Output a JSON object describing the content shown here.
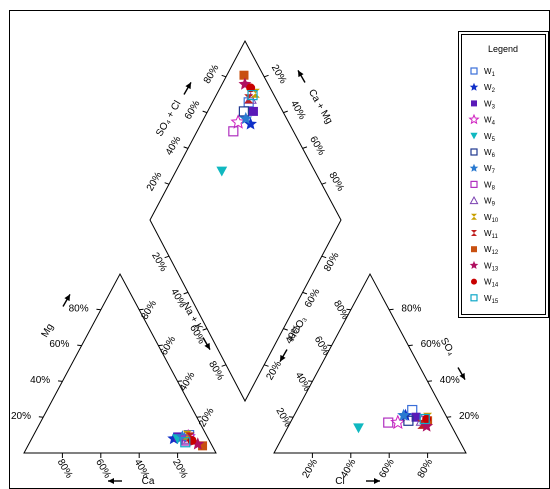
{
  "chart_data": {
    "type": "scatter",
    "legend": {
      "title": "Legend",
      "placement": "right",
      "series": [
        {
          "name": "W1",
          "label": "W",
          "sub": "1",
          "marker": "square-open",
          "color": "#3a6fd8"
        },
        {
          "name": "W2",
          "label": "W",
          "sub": "2",
          "marker": "star-filled",
          "color": "#1030c8"
        },
        {
          "name": "W3",
          "label": "W",
          "sub": "3",
          "marker": "square-filled",
          "color": "#5a1ab8"
        },
        {
          "name": "W4",
          "label": "W",
          "sub": "4",
          "marker": "star-open",
          "color": "#d020c0"
        },
        {
          "name": "W5",
          "label": "W",
          "sub": "5",
          "marker": "triangle-down-filled",
          "color": "#10b8c0"
        },
        {
          "name": "W6",
          "label": "W",
          "sub": "6",
          "marker": "square-open",
          "color": "#203890"
        },
        {
          "name": "W7",
          "label": "W",
          "sub": "7",
          "marker": "star-filled",
          "color": "#2a7ad0"
        },
        {
          "name": "W8",
          "label": "W",
          "sub": "8",
          "marker": "square-open",
          "color": "#b030c0"
        },
        {
          "name": "W9",
          "label": "W",
          "sub": "9",
          "marker": "triangle-up-open",
          "color": "#7a40b0"
        },
        {
          "name": "W10",
          "label": "W",
          "sub": "10",
          "marker": "hourglass",
          "color": "#c8a000"
        },
        {
          "name": "W11",
          "label": "W",
          "sub": "11",
          "marker": "hourglass",
          "color": "#c02020"
        },
        {
          "name": "W12",
          "label": "W",
          "sub": "12",
          "marker": "square-filled",
          "color": "#c85010"
        },
        {
          "name": "W13",
          "label": "W",
          "sub": "13",
          "marker": "star-filled",
          "color": "#b01060"
        },
        {
          "name": "W14",
          "label": "W",
          "sub": "14",
          "marker": "circle-filled",
          "color": "#c80000"
        },
        {
          "name": "W15",
          "label": "W",
          "sub": "15",
          "marker": "square-open",
          "color": "#10a8c8"
        }
      ]
    },
    "cation_triangle": {
      "axes": {
        "bottom": "Ca",
        "left": "Mg",
        "right": "Na + K"
      },
      "bottom_ticks": [
        "80%",
        "60%",
        "40%",
        "20%"
      ],
      "left_ticks": [
        "20%",
        "40%",
        "60%",
        "80%"
      ],
      "right_ticks": [
        "20%",
        "40%",
        "60%",
        "80%"
      ],
      "points": [
        {
          "series": "W1",
          "Ca": 9,
          "Mg": 10,
          "NaK": 81
        },
        {
          "series": "W2",
          "Ca": 18,
          "Mg": 8,
          "NaK": 74
        },
        {
          "series": "W3",
          "Ca": 15,
          "Mg": 9,
          "NaK": 76
        },
        {
          "series": "W4",
          "Ca": 10,
          "Mg": 9,
          "NaK": 81
        },
        {
          "series": "W5",
          "Ca": 16,
          "Mg": 8,
          "NaK": 76
        },
        {
          "series": "W6",
          "Ca": 12,
          "Mg": 7,
          "NaK": 81
        },
        {
          "series": "W7",
          "Ca": 13,
          "Mg": 9,
          "NaK": 78
        },
        {
          "series": "W8",
          "Ca": 12,
          "Mg": 7,
          "NaK": 81
        },
        {
          "series": "W9",
          "Ca": 11,
          "Mg": 8,
          "NaK": 81
        },
        {
          "series": "W10",
          "Ca": 10,
          "Mg": 10,
          "NaK": 80
        },
        {
          "series": "W11",
          "Ca": 9,
          "Mg": 9,
          "NaK": 82
        },
        {
          "series": "W12",
          "Ca": 5,
          "Mg": 4,
          "NaK": 91
        },
        {
          "series": "W13",
          "Ca": 7,
          "Mg": 5,
          "NaK": 88
        },
        {
          "series": "W14",
          "Ca": 9,
          "Mg": 7,
          "NaK": 84
        },
        {
          "series": "W15",
          "Ca": 13,
          "Mg": 6,
          "NaK": 81
        }
      ]
    },
    "anion_triangle": {
      "axes": {
        "bottom": "Cl",
        "left": "HCO₃",
        "right": "SO₄"
      },
      "bottom_ticks": [
        "20%",
        "40%",
        "60%",
        "80%"
      ],
      "left_ticks": [
        "20%",
        "40%",
        "60%",
        "80%"
      ],
      "right_ticks": [
        "20%",
        "40%",
        "60%",
        "80%"
      ],
      "points": [
        {
          "series": "W1",
          "Cl": 60,
          "SO4": 24,
          "HCO3": 16
        },
        {
          "series": "W2",
          "Cl": 58,
          "SO4": 21,
          "HCO3": 21
        },
        {
          "series": "W3",
          "Cl": 64,
          "SO4": 20,
          "HCO3": 16
        },
        {
          "series": "W4",
          "Cl": 56,
          "SO4": 17,
          "HCO3": 27
        },
        {
          "series": "W5",
          "Cl": 37,
          "SO4": 14,
          "HCO3": 49
        },
        {
          "series": "W6",
          "Cl": 61,
          "SO4": 18,
          "HCO3": 21
        },
        {
          "series": "W7",
          "Cl": 57,
          "SO4": 21,
          "HCO3": 22
        },
        {
          "series": "W8",
          "Cl": 51,
          "SO4": 17,
          "HCO3": 32
        },
        {
          "series": "W9",
          "Cl": 68,
          "SO4": 18,
          "HCO3": 14
        },
        {
          "series": "W10",
          "Cl": 70,
          "SO4": 20,
          "HCO3": 10
        },
        {
          "series": "W11",
          "Cl": 69,
          "SO4": 16,
          "HCO3": 15
        },
        {
          "series": "W12",
          "Cl": 71,
          "SO4": 18,
          "HCO3": 11
        },
        {
          "series": "W13",
          "Cl": 72,
          "SO4": 15,
          "HCO3": 13
        },
        {
          "series": "W14",
          "Cl": 70,
          "SO4": 19,
          "HCO3": 11
        },
        {
          "series": "W15",
          "Cl": 69,
          "SO4": 19,
          "HCO3": 12
        }
      ]
    },
    "diamond": {
      "axes": {
        "top_left": "SO₄ + Cl",
        "top_right": "Ca + Mg",
        "bottom_left": "Na + K",
        "bottom_right": "HCO₃"
      },
      "upper_left_ticks": [
        "20%",
        "40%",
        "60%",
        "80%"
      ],
      "upper_right_ticks": [
        "20%",
        "40%",
        "60%",
        "80%"
      ],
      "lower_left_ticks": [
        "20%",
        "40%",
        "60%",
        "80%"
      ],
      "lower_right_ticks": [
        "20%",
        "40%",
        "60%",
        "80%"
      ]
    }
  }
}
